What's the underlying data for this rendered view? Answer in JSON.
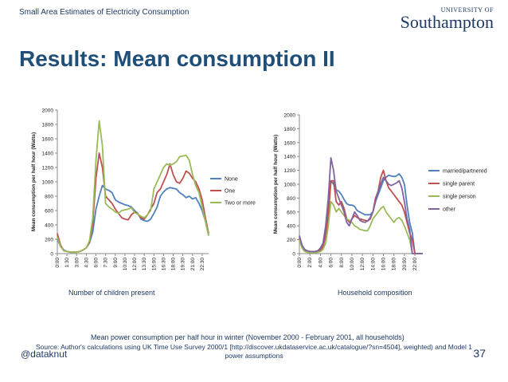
{
  "header": {
    "text": "Small Area Estimates of Electricity Consumption"
  },
  "logo": {
    "small": "UNIVERSITY OF",
    "big": "Southampton"
  },
  "title": "Results: Mean consumption II",
  "captions": {
    "left": "Number of children present",
    "right": "Household composition",
    "main": "Mean power consumption per half hour in winter (November 2000 - February 2001, all households)"
  },
  "footer": {
    "source": "Source: Author's calculations using UK Time Use Survey 2000/1 [http://discover.ukdataservice.ac.uk/catalogue/?sn=4504], weighted) and Model 1 power assumptions",
    "handle": "@dataknut",
    "page": "37"
  },
  "colors": {
    "blue": "#4f81bd",
    "red": "#c0504d",
    "green": "#9bbb59",
    "purple": "#8064a2"
  },
  "chart_data": [
    {
      "type": "line",
      "ylabel": "Mean consumption per half hour (Watts)",
      "ylim": [
        0,
        2000
      ],
      "yticks": [
        0,
        200,
        400,
        600,
        800,
        1000,
        1200,
        1400,
        1600,
        1800,
        2000
      ],
      "x_tick_labels": [
        "0:00",
        "1:30",
        "3:00",
        "4:30",
        "6:00",
        "7:30",
        "9:00",
        "10:30",
        "12:00",
        "13:30",
        "15:00",
        "16:30",
        "18:00",
        "19:30",
        "21:00",
        "22:30"
      ],
      "points": 48,
      "legend_position": "right",
      "series": [
        {
          "name": "None",
          "color": "#4f81bd",
          "values": [
            200,
            100,
            50,
            30,
            20,
            20,
            20,
            30,
            50,
            80,
            150,
            300,
            620,
            800,
            950,
            900,
            880,
            850,
            750,
            720,
            700,
            680,
            670,
            650,
            600,
            560,
            480,
            460,
            450,
            480,
            560,
            650,
            800,
            860,
            900,
            920,
            910,
            900,
            850,
            820,
            780,
            800,
            760,
            780,
            700,
            600,
            450,
            250
          ]
        },
        {
          "name": "One",
          "color": "#c0504d",
          "values": [
            280,
            120,
            40,
            30,
            20,
            20,
            20,
            30,
            50,
            80,
            160,
            420,
            1050,
            1400,
            1200,
            800,
            750,
            700,
            620,
            560,
            500,
            480,
            470,
            540,
            580,
            550,
            500,
            480,
            540,
            620,
            700,
            850,
            900,
            1000,
            1100,
            1250,
            1100,
            1000,
            980,
            1050,
            1150,
            1120,
            1050,
            1000,
            900,
            750,
            500,
            280
          ]
        },
        {
          "name": "Two or more",
          "color": "#9bbb59",
          "values": [
            230,
            100,
            40,
            30,
            20,
            20,
            20,
            30,
            50,
            80,
            180,
            500,
            1300,
            1850,
            1500,
            700,
            650,
            620,
            580,
            560,
            600,
            610,
            620,
            640,
            570,
            550,
            520,
            500,
            540,
            600,
            900,
            1000,
            1100,
            1200,
            1250,
            1230,
            1250,
            1280,
            1350,
            1360,
            1370,
            1300,
            1100,
            950,
            850,
            650,
            450,
            250
          ]
        }
      ]
    },
    {
      "type": "line",
      "ylabel": "Mean consumption per half hour (Watts)",
      "ylim": [
        0,
        2000
      ],
      "yticks": [
        0,
        200,
        400,
        600,
        800,
        1000,
        1200,
        1400,
        1600,
        1800,
        2000
      ],
      "x_tick_labels": [
        "0:00",
        "2:00",
        "4:00",
        "6:00",
        "8:00",
        "10:00",
        "12:00",
        "14:00",
        "16:00",
        "18:00",
        "20:00",
        "22:00"
      ],
      "points": 48,
      "legend_position": "right",
      "series": [
        {
          "name": "married/partnered",
          "color": "#4f81bd",
          "values": [
            250,
            120,
            60,
            40,
            30,
            30,
            30,
            40,
            60,
            120,
            300,
            600,
            1050,
            1000,
            920,
            900,
            850,
            780,
            720,
            700,
            700,
            680,
            620,
            600,
            580,
            560,
            560,
            560,
            600,
            750,
            850,
            950,
            1050,
            1100,
            1130,
            1120,
            1110,
            1120,
            1150,
            1100,
            1000,
            700,
            450,
            300,
            0,
            0,
            0,
            0
          ]
        },
        {
          "name": "single parent",
          "color": "#c0504d",
          "values": [
            230,
            110,
            50,
            30,
            20,
            20,
            20,
            30,
            50,
            100,
            250,
            550,
            1050,
            1050,
            750,
            700,
            750,
            650,
            500,
            450,
            500,
            550,
            520,
            500,
            490,
            480,
            470,
            500,
            600,
            800,
            900,
            1100,
            1200,
            1050,
            950,
            900,
            850,
            800,
            750,
            700,
            600,
            450,
            300,
            200,
            0,
            0,
            0,
            0
          ]
        },
        {
          "name": "single person",
          "color": "#9bbb59",
          "values": [
            200,
            80,
            30,
            20,
            15,
            15,
            15,
            20,
            30,
            60,
            150,
            400,
            750,
            700,
            600,
            650,
            600,
            550,
            500,
            480,
            450,
            400,
            380,
            350,
            340,
            330,
            330,
            400,
            500,
            550,
            600,
            650,
            680,
            600,
            550,
            500,
            450,
            500,
            520,
            480,
            400,
            300,
            200,
            0,
            0,
            0,
            0,
            0
          ]
        },
        {
          "name": "other",
          "color": "#8064a2",
          "values": [
            260,
            120,
            60,
            40,
            30,
            30,
            30,
            40,
            80,
            150,
            400,
            800,
            1380,
            1200,
            900,
            800,
            700,
            600,
            450,
            400,
            500,
            600,
            550,
            480,
            460,
            450,
            470,
            520,
            600,
            750,
            900,
            1000,
            1100,
            1050,
            1000,
            980,
            1000,
            1020,
            1050,
            950,
            750,
            500,
            350,
            0,
            0,
            0,
            0,
            0
          ]
        }
      ]
    }
  ]
}
